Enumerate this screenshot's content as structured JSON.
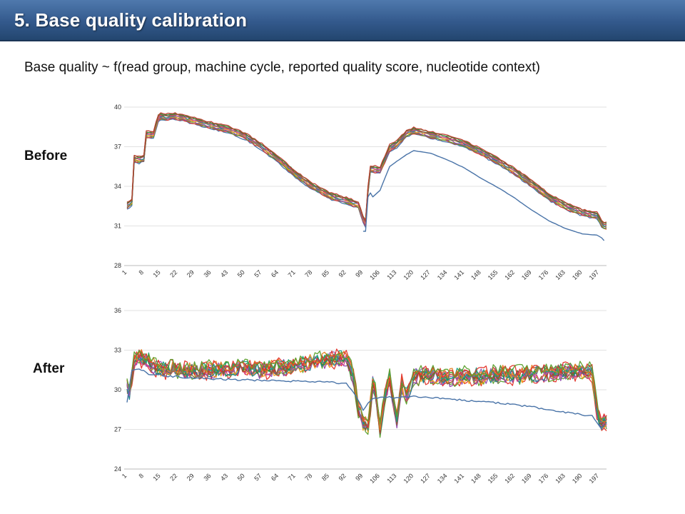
{
  "slide": {
    "title": "5. Base quality calibration",
    "subtitle": "Base quality ~ f(read group, machine cycle, reported quality score, nucleotide context)",
    "before_label": "Before",
    "after_label": "After"
  },
  "chart_data": [
    {
      "type": "line",
      "panel": "Before",
      "ylim": [
        28,
        40
      ],
      "yticks": [
        28,
        31,
        34,
        37,
        40
      ],
      "xlim": [
        1,
        200
      ],
      "xticks": [
        1,
        8,
        15,
        22,
        29,
        36,
        43,
        50,
        57,
        64,
        71,
        78,
        85,
        92,
        99,
        106,
        113,
        120,
        127,
        134,
        141,
        148,
        155,
        162,
        169,
        176,
        183,
        190,
        197
      ],
      "grid": true,
      "legend": "none",
      "series_colors": [
        "#3b6ea5",
        "#e3332a",
        "#5aa02c",
        "#8e44ad",
        "#f39c12",
        "#1a7f8e",
        "#d63f8c",
        "#8b5a2b",
        "#2c8c3c",
        "#c0392b"
      ],
      "main_profile": {
        "x": [
          1,
          3,
          4,
          6,
          8,
          9,
          11,
          12,
          14,
          15,
          17,
          20,
          24,
          30,
          36,
          43,
          50,
          57,
          64,
          71,
          78,
          85,
          92,
          97,
          99,
          100,
          101,
          102,
          103,
          106,
          110,
          113,
          117,
          120,
          127,
          134,
          141,
          148,
          155,
          162,
          169,
          176,
          183,
          190,
          196,
          198,
          199
        ],
        "y": [
          32.5,
          32.8,
          36.1,
          36.0,
          36.1,
          37.9,
          37.9,
          37.9,
          39.2,
          39.3,
          39.2,
          39.3,
          39.2,
          38.9,
          38.6,
          38.3,
          37.8,
          37.0,
          36.0,
          34.9,
          34.0,
          33.3,
          32.9,
          32.6,
          31.5,
          31.2,
          33.7,
          35.3,
          35.3,
          35.2,
          36.9,
          37.2,
          38.0,
          38.2,
          37.9,
          37.6,
          37.2,
          36.6,
          35.9,
          35.1,
          34.2,
          33.2,
          32.5,
          32.0,
          31.8,
          31.2,
          31.0
        ],
        "band_spread": 0.5
      },
      "outlier_series": {
        "x": [
          99,
          100,
          101,
          102,
          103,
          106,
          110,
          113,
          117,
          120,
          127,
          134,
          141,
          148,
          155,
          162,
          169,
          176,
          183,
          190,
          196,
          198,
          199
        ],
        "y": [
          30.6,
          30.6,
          33.2,
          33.5,
          33.2,
          33.7,
          35.5,
          35.9,
          36.4,
          36.7,
          36.5,
          36.0,
          35.4,
          34.6,
          33.9,
          33.1,
          32.2,
          31.4,
          30.8,
          30.4,
          30.3,
          30.1,
          29.9
        ]
      }
    },
    {
      "type": "line",
      "panel": "After",
      "ylim": [
        24,
        36
      ],
      "yticks": [
        24,
        27,
        30,
        33,
        36
      ],
      "xlim": [
        1,
        200
      ],
      "xticks": [
        1,
        8,
        15,
        22,
        29,
        36,
        43,
        50,
        57,
        64,
        71,
        78,
        85,
        92,
        99,
        106,
        113,
        120,
        127,
        134,
        141,
        148,
        155,
        162,
        169,
        176,
        183,
        190,
        197
      ],
      "grid": true,
      "legend": "none",
      "series_colors": [
        "#e3332a",
        "#5aa02c",
        "#8e44ad",
        "#f39c12",
        "#1a7f8e",
        "#d63f8c",
        "#8b5a2b",
        "#2c8c3c",
        "#c0392b",
        "#9b59b6",
        "#16a085",
        "#e67e22"
      ],
      "main_profile": {
        "x": [
          1,
          2,
          3,
          4,
          6,
          8,
          10,
          12,
          15,
          22,
          29,
          36,
          43,
          50,
          57,
          64,
          71,
          78,
          85,
          92,
          95,
          97,
          99,
          101,
          103,
          104,
          106,
          108,
          110,
          112,
          113,
          115,
          117,
          120,
          127,
          134,
          141,
          148,
          155,
          162,
          169,
          176,
          183,
          190,
          194,
          196,
          198,
          199
        ],
        "y": [
          30.5,
          29.8,
          31.0,
          32.2,
          32.5,
          32.3,
          32.2,
          31.8,
          31.6,
          31.5,
          31.4,
          31.5,
          31.6,
          31.7,
          31.5,
          31.7,
          31.8,
          32.1,
          32.3,
          32.4,
          31.0,
          28.5,
          27.5,
          27.2,
          30.5,
          30.0,
          27.0,
          29.5,
          31.0,
          28.5,
          27.8,
          30.5,
          29.5,
          31.0,
          31.2,
          30.9,
          31.1,
          31.0,
          31.2,
          31.1,
          31.2,
          31.3,
          31.4,
          31.4,
          31.3,
          28.5,
          27.2,
          27.6
        ],
        "band_spread": 0.7
      },
      "outlier_series": {
        "x": [
          1,
          3,
          6,
          10,
          20,
          40,
          60,
          80,
          92,
          96,
          99,
          102,
          106,
          113,
          120,
          127,
          134,
          141,
          155,
          169,
          183,
          194,
          196,
          198,
          199
        ],
        "y": [
          29.0,
          31.5,
          31.6,
          31.2,
          31.0,
          30.8,
          30.7,
          30.6,
          30.5,
          29.5,
          28.5,
          29.2,
          29.5,
          29.4,
          29.5,
          29.4,
          29.3,
          29.2,
          29.0,
          28.7,
          28.3,
          28.0,
          27.5,
          27.0,
          27.3
        ]
      }
    }
  ]
}
